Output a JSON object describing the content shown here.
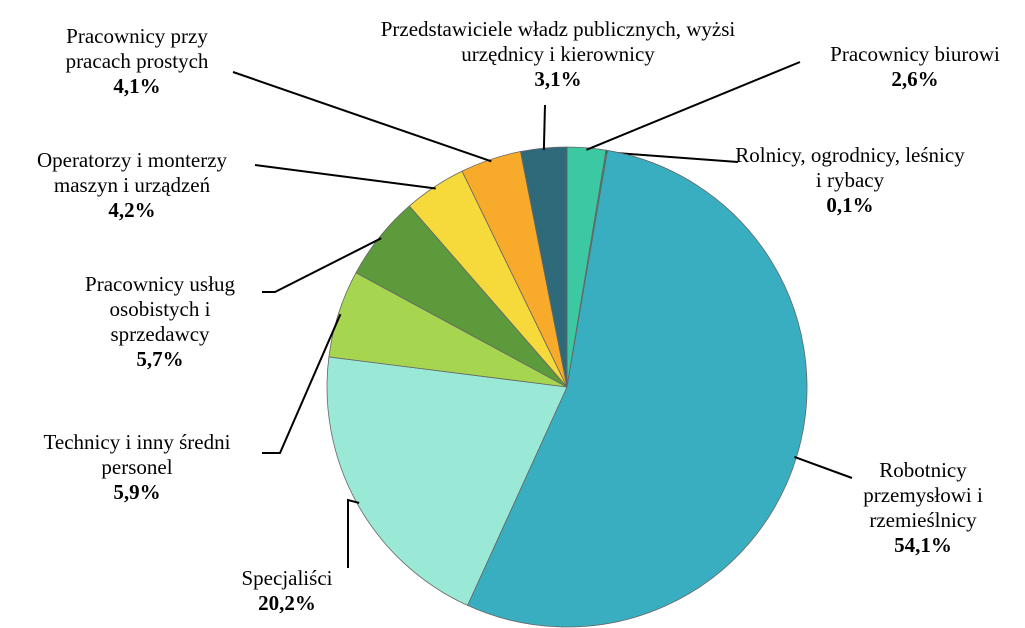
{
  "chart_data": {
    "type": "pie",
    "categories": [
      "Pracownicy biurowi",
      "Rolnicy, ogrodnicy, leśnicy i rybacy",
      "Robotnicy przemysłowi i rzemieślnicy",
      "Specjaliści",
      "Technicy i inny średni personel",
      "Pracownicy usług osobistych i sprzedawcy",
      "Operatorzy i monterzy maszyn i urządzeń",
      "Pracownicy przy pracach prostych",
      "Przedstawiciele władz publicznych, wyżsi urzędnicy i kierownicy"
    ],
    "values": [
      2.6,
      0.1,
      54.1,
      20.2,
      5.9,
      5.7,
      4.2,
      4.1,
      3.1
    ],
    "value_labels": [
      "2,6%",
      "0,1%",
      "54,1%",
      "20,2%",
      "5,9%",
      "5,7%",
      "4,2%",
      "4,1%",
      "3,1%"
    ],
    "colors": [
      "#3cc8a2",
      "#2e8f74",
      "#3aaec1",
      "#9ae9d6",
      "#a6d650",
      "#5c9a3c",
      "#f6da3c",
      "#f8aa2a",
      "#2f6a7a"
    ]
  }
}
